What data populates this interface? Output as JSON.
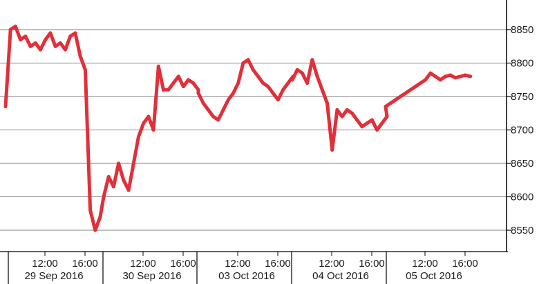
{
  "chart_data": {
    "type": "line",
    "title": "",
    "xlabel": "",
    "ylabel": "",
    "ylim": [
      8525,
      8875
    ],
    "y_ticks": [
      8550,
      8600,
      8650,
      8700,
      8750,
      8800,
      8850
    ],
    "y_tick_labels": [
      "8550",
      "8600",
      "8650",
      "8700",
      "8750",
      "8800",
      "8850"
    ],
    "grid": "horizontal",
    "y_axis_position": "right",
    "x_time_labels": [
      "12:00",
      "16:00",
      "12:00",
      "16:00",
      "12:00",
      "16:00",
      "12:00",
      "16:00",
      "12:00",
      "16:00"
    ],
    "x_dates": [
      "29 Sep 2016",
      "30 Sep 2016",
      "03 Oct 2016",
      "04 Oct 2016",
      "05 Oct 2016"
    ],
    "series": [
      {
        "color": "#e0303a",
        "x": [
          "29 Sep 2016 08:00",
          "29 Sep 2016 08:30",
          "29 Sep 2016 09:00",
          "29 Sep 2016 09:30",
          "29 Sep 2016 10:00",
          "29 Sep 2016 10:30",
          "29 Sep 2016 11:00",
          "29 Sep 2016 11:30",
          "29 Sep 2016 12:00",
          "29 Sep 2016 12:30",
          "29 Sep 2016 13:00",
          "29 Sep 2016 13:30",
          "29 Sep 2016 14:00",
          "29 Sep 2016 14:30",
          "29 Sep 2016 15:00",
          "29 Sep 2016 15:30",
          "29 Sep 2016 16:00",
          "29 Sep 2016 16:30",
          "29 Sep 2016 17:00",
          "29 Sep 2016 17:30",
          "30 Sep 2016 08:00",
          "30 Sep 2016 08:30",
          "30 Sep 2016 09:00",
          "30 Sep 2016 09:30",
          "30 Sep 2016 10:00",
          "30 Sep 2016 10:30",
          "30 Sep 2016 11:00",
          "30 Sep 2016 11:30",
          "30 Sep 2016 12:00",
          "30 Sep 2016 12:30",
          "30 Sep 2016 13:00",
          "30 Sep 2016 13:30",
          "30 Sep 2016 14:00",
          "30 Sep 2016 14:30",
          "30 Sep 2016 15:00",
          "30 Sep 2016 15:30",
          "30 Sep 2016 16:00",
          "30 Sep 2016 16:30",
          "30 Sep 2016 17:00",
          "30 Sep 2016 17:30",
          "03 Oct 2016 08:00",
          "03 Oct 2016 08:30",
          "03 Oct 2016 09:00",
          "03 Oct 2016 09:30",
          "03 Oct 2016 10:00",
          "03 Oct 2016 10:30",
          "03 Oct 2016 11:00",
          "03 Oct 2016 11:30",
          "03 Oct 2016 12:00",
          "03 Oct 2016 12:30",
          "03 Oct 2016 13:00",
          "03 Oct 2016 13:30",
          "03 Oct 2016 14:00",
          "03 Oct 2016 14:30",
          "03 Oct 2016 15:00",
          "03 Oct 2016 15:30",
          "03 Oct 2016 16:00",
          "03 Oct 2016 16:30",
          "03 Oct 2016 17:00",
          "03 Oct 2016 17:30",
          "04 Oct 2016 08:00",
          "04 Oct 2016 08:30",
          "04 Oct 2016 09:00",
          "04 Oct 2016 09:30",
          "04 Oct 2016 10:00",
          "04 Oct 2016 10:30",
          "04 Oct 2016 11:00",
          "04 Oct 2016 11:30",
          "04 Oct 2016 12:00",
          "04 Oct 2016 12:30",
          "04 Oct 2016 13:00",
          "04 Oct 2016 13:30",
          "04 Oct 2016 14:00",
          "04 Oct 2016 14:30",
          "04 Oct 2016 15:00",
          "04 Oct 2016 15:30",
          "04 Oct 2016 16:00",
          "04 Oct 2016 16:30",
          "04 Oct 2016 17:00",
          "04 Oct 2016 17:30",
          "05 Oct 2016 08:00",
          "05 Oct 2016 08:30",
          "05 Oct 2016 09:00",
          "05 Oct 2016 09:30",
          "05 Oct 2016 10:00",
          "05 Oct 2016 10:30",
          "05 Oct 2016 11:00",
          "05 Oct 2016 11:30",
          "05 Oct 2016 12:00",
          "05 Oct 2016 12:30",
          "05 Oct 2016 13:00",
          "05 Oct 2016 13:30",
          "05 Oct 2016 14:00",
          "05 Oct 2016 14:30",
          "05 Oct 2016 15:00",
          "05 Oct 2016 15:30",
          "05 Oct 2016 16:00",
          "05 Oct 2016 16:30"
        ],
        "values": [
          8735,
          8850,
          8855,
          8835,
          8840,
          8825,
          8830,
          8820,
          8835,
          8845,
          8825,
          8830,
          8820,
          8840,
          8845,
          8810,
          8790,
          8580,
          8550,
          8570,
          8600,
          8630,
          8615,
          8650,
          8625,
          8610,
          8650,
          8690,
          8710,
          8720,
          8700,
          8795,
          8760,
          8760,
          8770,
          8780,
          8765,
          8775,
          8770,
          8760,
          8755,
          8740,
          8730,
          8720,
          8715,
          8730,
          8745,
          8755,
          8770,
          8800,
          8805,
          8790,
          8780,
          8770,
          8765,
          8755,
          8745,
          8760,
          8770,
          8780,
          8775,
          8790,
          8785,
          8770,
          8805,
          8780,
          8760,
          8740,
          8670,
          8730,
          8720,
          8730,
          8725,
          8715,
          8705,
          8710,
          8715,
          8700,
          8710,
          8720,
          8735,
          8740,
          8745,
          8750,
          8755,
          8760,
          8765,
          8770,
          8775,
          8785,
          8780,
          8775,
          8780,
          8782,
          8778,
          8780,
          8782,
          8780
        ]
      }
    ]
  }
}
